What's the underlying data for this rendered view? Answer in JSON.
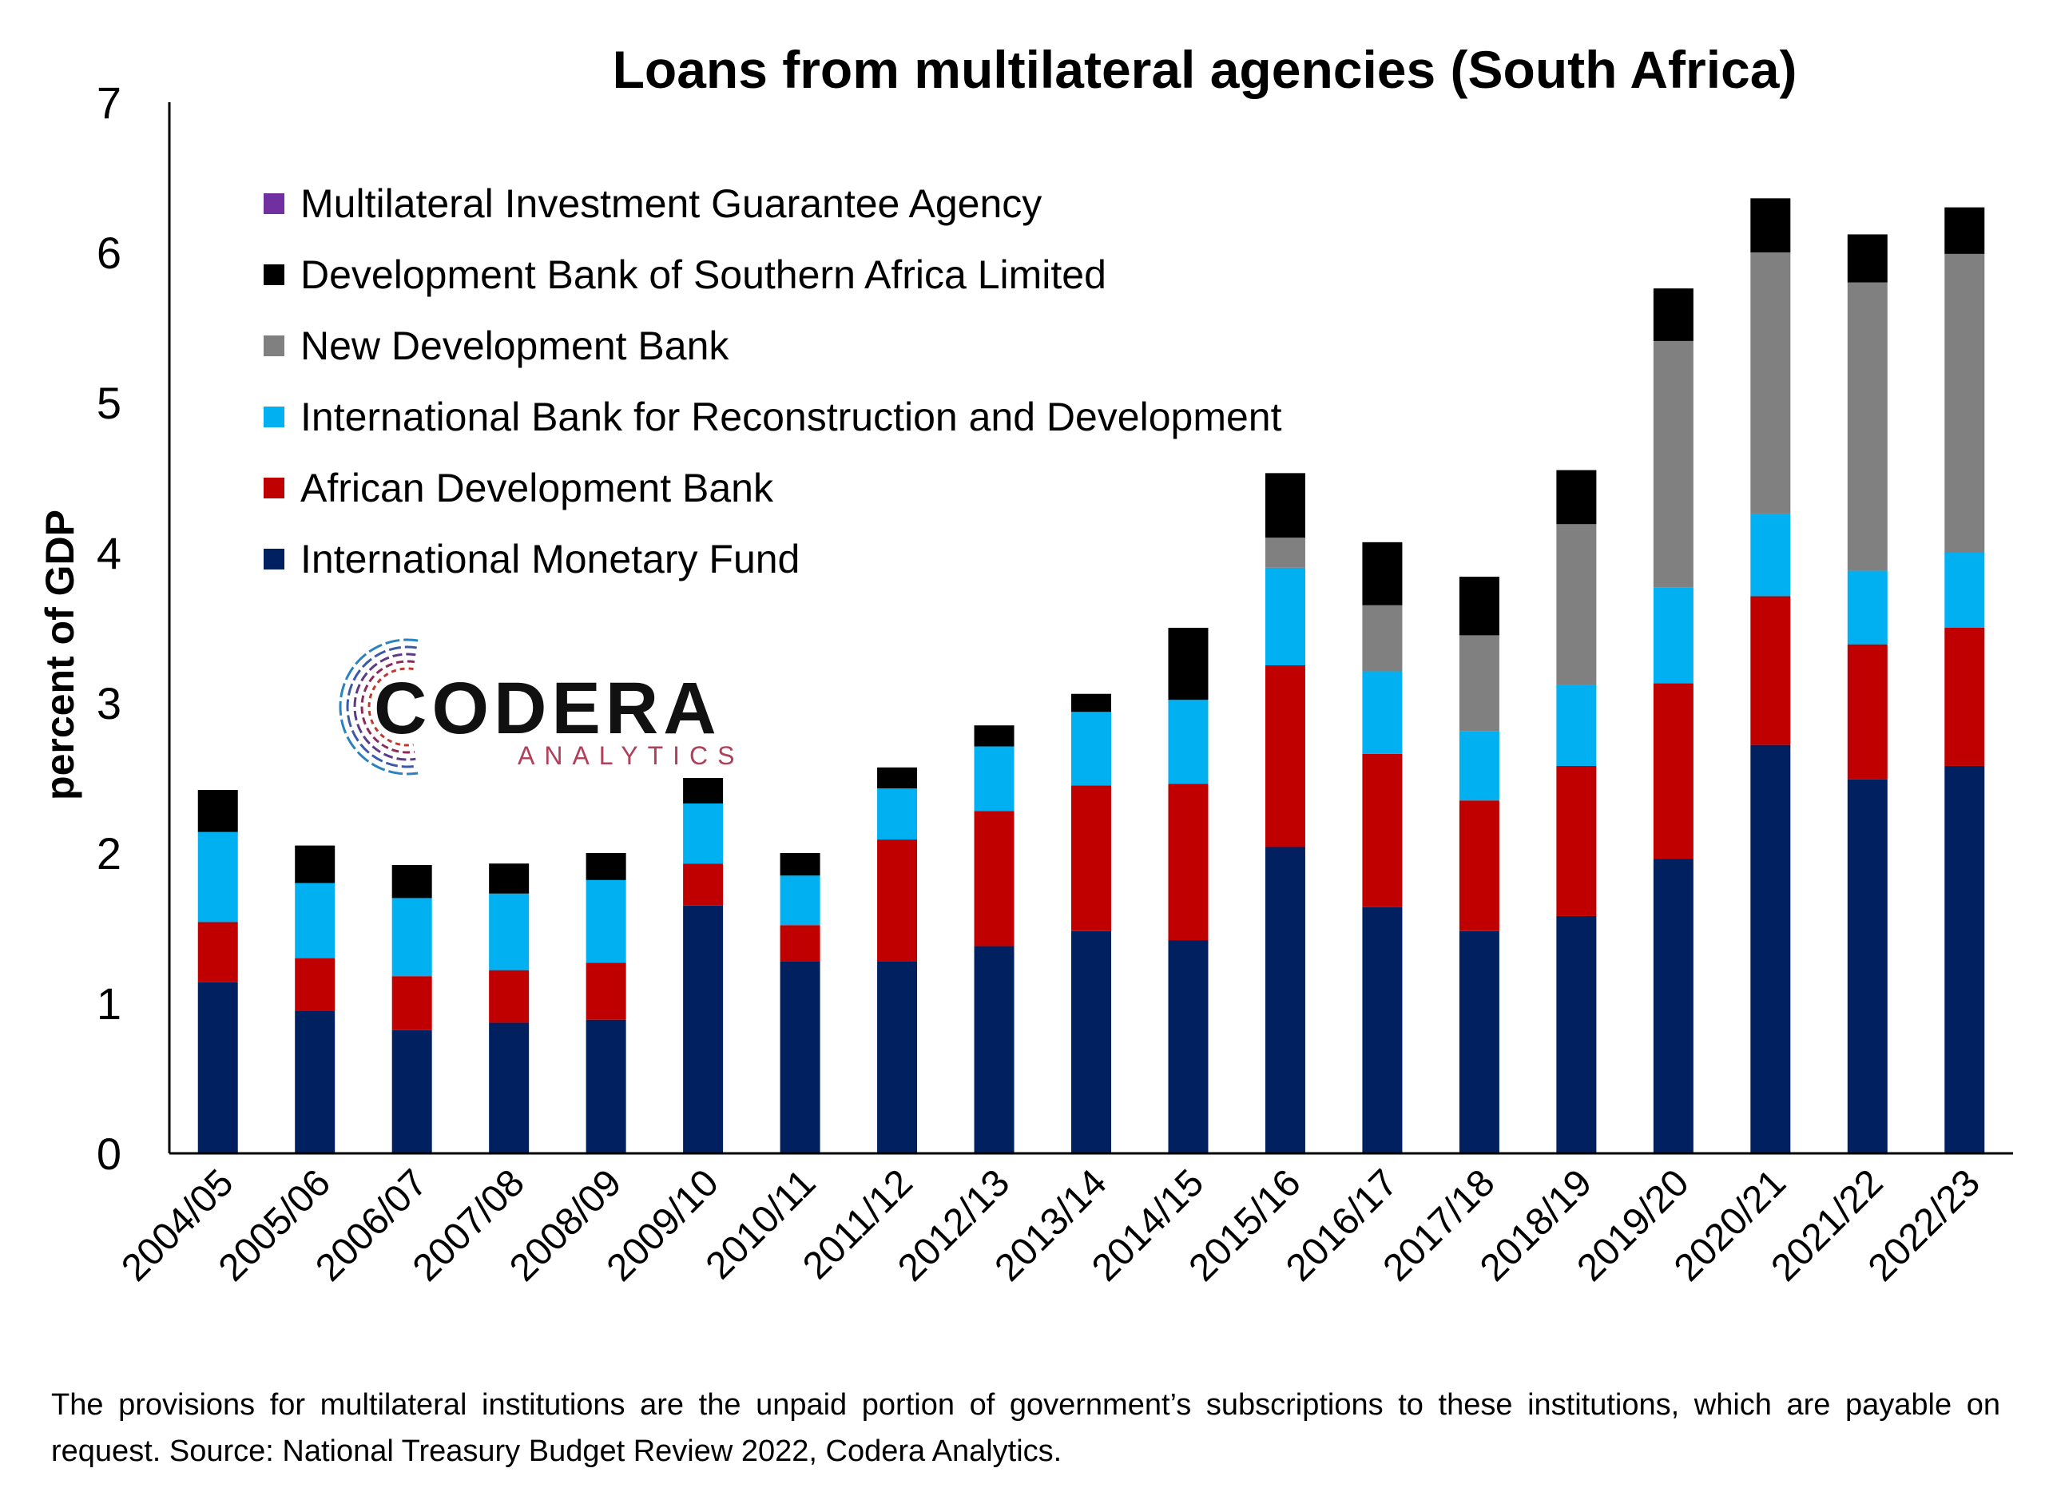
{
  "chart_data": {
    "type": "bar",
    "stacked": true,
    "title": "Loans from multilateral agencies (South Africa)",
    "xlabel": "",
    "ylabel": "percent of GDP",
    "ylim": [
      0,
      7
    ],
    "yticks": [
      0,
      1,
      2,
      3,
      4,
      5,
      6,
      7
    ],
    "grid": false,
    "legend_position": "top-left",
    "categories": [
      "2004/05",
      "2005/06",
      "2006/07",
      "2007/08",
      "2008/09",
      "2009/10",
      "2010/11",
      "2011/12",
      "2012/13",
      "2013/14",
      "2014/15",
      "2015/16",
      "2016/17",
      "2017/18",
      "2018/19",
      "2019/20",
      "2020/21",
      "2021/22",
      "2022/23"
    ],
    "series": [
      {
        "name": "International Monetary Fund",
        "color": "#002060",
        "values": [
          1.14,
          0.95,
          0.82,
          0.87,
          0.89,
          1.65,
          1.28,
          1.28,
          1.38,
          1.48,
          1.42,
          2.04,
          1.64,
          1.48,
          1.58,
          1.96,
          2.72,
          2.49,
          2.58
        ]
      },
      {
        "name": "African Development Bank",
        "color": "#C00000",
        "values": [
          0.4,
          0.35,
          0.36,
          0.35,
          0.38,
          0.28,
          0.24,
          0.81,
          0.9,
          0.97,
          1.04,
          1.21,
          1.02,
          0.87,
          1.0,
          1.17,
          0.99,
          0.9,
          0.92
        ]
      },
      {
        "name": "International Bank for Reconstruction and Development",
        "color": "#00B0F0",
        "values": [
          0.6,
          0.5,
          0.52,
          0.51,
          0.55,
          0.4,
          0.33,
          0.34,
          0.43,
          0.49,
          0.56,
          0.65,
          0.55,
          0.46,
          0.54,
          0.64,
          0.55,
          0.49,
          0.5
        ]
      },
      {
        "name": "New Development Bank",
        "color": "#808080",
        "values": [
          0,
          0,
          0,
          0,
          0,
          0,
          0,
          0,
          0,
          0,
          0,
          0.2,
          0.44,
          0.64,
          1.07,
          1.64,
          1.74,
          1.92,
          1.99
        ]
      },
      {
        "name": "Development Bank of Southern Africa Limited",
        "color": "#000000",
        "values": [
          0.28,
          0.25,
          0.22,
          0.2,
          0.18,
          0.17,
          0.15,
          0.14,
          0.14,
          0.12,
          0.48,
          0.43,
          0.42,
          0.39,
          0.36,
          0.35,
          0.36,
          0.32,
          0.31
        ]
      },
      {
        "name": "Multilateral Investment Guarantee Agency",
        "color": "#7030A0",
        "values": [
          0,
          0,
          0,
          0,
          0,
          0,
          0,
          0,
          0,
          0,
          0,
          0,
          0,
          0,
          0,
          0,
          0,
          0,
          0
        ]
      }
    ]
  },
  "logo": {
    "main": "CODERA",
    "sub": "ANALYTICS"
  },
  "footnote": "The provisions for multilateral institutions are the unpaid portion of government’s subscriptions to these institutions, which are payable on request. Source: National Treasury Budget Review 2022, Codera Analytics."
}
